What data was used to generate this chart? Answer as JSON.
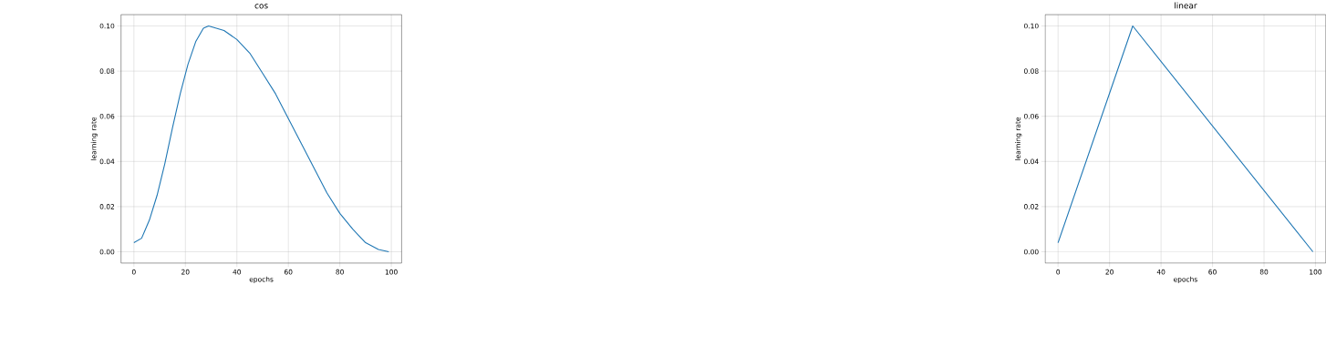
{
  "chart_data": [
    {
      "type": "line",
      "title": "cos",
      "xlabel": "epochs",
      "ylabel": "learning rate",
      "grid": true,
      "marker": "none",
      "line_style": "solid",
      "xlim": [
        -5,
        104
      ],
      "ylim": [
        -0.005,
        0.105
      ],
      "xticks": [
        0,
        20,
        40,
        60,
        80,
        100
      ],
      "yticks": [
        {
          "value": 0,
          "label": "0.00"
        },
        {
          "value": 0.02,
          "label": "0.02"
        },
        {
          "value": 0.04,
          "label": "0.04"
        },
        {
          "value": 0.06,
          "label": "0.06"
        },
        {
          "value": 0.08,
          "label": "0.08"
        },
        {
          "value": 0.1,
          "label": "0.10"
        }
      ],
      "series": [
        {
          "color": "#1f77b4",
          "x": [
            0,
            3,
            6,
            9,
            12,
            15,
            18,
            21,
            24,
            27,
            29,
            35,
            40,
            45,
            50,
            55,
            60,
            65,
            70,
            75,
            80,
            85,
            90,
            95,
            99
          ],
          "values": [
            0.004,
            0.006,
            0.014,
            0.025,
            0.039,
            0.055,
            0.07,
            0.083,
            0.093,
            0.099,
            0.1,
            0.098,
            0.094,
            0.088,
            0.079,
            0.07,
            0.059,
            0.048,
            0.037,
            0.026,
            0.017,
            0.01,
            0.004,
            0.001,
            0.0
          ]
        }
      ]
    },
    {
      "type": "line",
      "title": "linear",
      "xlabel": "epochs",
      "ylabel": "learning rate",
      "grid": true,
      "marker": "none",
      "line_style": "solid",
      "xlim": [
        -5,
        104
      ],
      "ylim": [
        -0.005,
        0.105
      ],
      "xticks": [
        0,
        20,
        40,
        60,
        80,
        100
      ],
      "yticks": [
        {
          "value": 0,
          "label": "0.00"
        },
        {
          "value": 0.02,
          "label": "0.02"
        },
        {
          "value": 0.04,
          "label": "0.04"
        },
        {
          "value": 0.06,
          "label": "0.06"
        },
        {
          "value": 0.08,
          "label": "0.08"
        },
        {
          "value": 0.1,
          "label": "0.10"
        }
      ],
      "series": [
        {
          "color": "#1f77b4",
          "x": [
            0,
            29,
            99
          ],
          "values": [
            0.004,
            0.1,
            0.0
          ]
        }
      ]
    }
  ]
}
